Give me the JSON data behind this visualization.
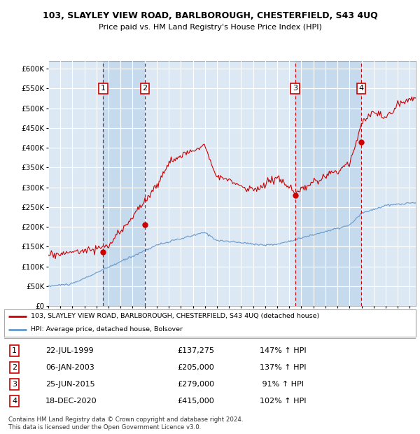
{
  "title": "103, SLAYLEY VIEW ROAD, BARLBOROUGH, CHESTERFIELD, S43 4UQ",
  "subtitle": "Price paid vs. HM Land Registry's House Price Index (HPI)",
  "background_color": "#ffffff",
  "plot_bg_color": "#dce9f5",
  "grid_color": "#ffffff",
  "ylim": [
    0,
    620000
  ],
  "yticks": [
    0,
    50000,
    100000,
    150000,
    200000,
    250000,
    300000,
    350000,
    400000,
    450000,
    500000,
    550000,
    600000
  ],
  "xlim_start": 1995.0,
  "xlim_end": 2025.5,
  "transactions": [
    {
      "num": 1,
      "date_str": "22-JUL-1999",
      "x": 1999.55,
      "price": 137275,
      "pct": "147%",
      "dir": "↑"
    },
    {
      "num": 2,
      "date_str": "06-JAN-2003",
      "x": 2003.02,
      "price": 205000,
      "pct": "137%",
      "dir": "↑"
    },
    {
      "num": 3,
      "date_str": "25-JUN-2015",
      "x": 2015.48,
      "price": 279000,
      "pct": "91%",
      "dir": "↑"
    },
    {
      "num": 4,
      "date_str": "18-DEC-2020",
      "x": 2020.96,
      "price": 415000,
      "pct": "102%",
      "dir": "↑"
    }
  ],
  "legend_line1": "103, SLAYLEY VIEW ROAD, BARLBOROUGH, CHESTERFIELD, S43 4UQ (detached house)",
  "legend_line2": "HPI: Average price, detached house, Bolsover",
  "footer1": "Contains HM Land Registry data © Crown copyright and database right 2024.",
  "footer2": "This data is licensed under the Open Government Licence v3.0.",
  "red_color": "#cc0000",
  "blue_color": "#6699cc",
  "table_rows": [
    {
      "num": "1",
      "date": "22-JUL-1999",
      "price": "£137,275",
      "pct": "147% ↑ HPI"
    },
    {
      "num": "2",
      "date": "06-JAN-2003",
      "price": "£205,000",
      "pct": "137% ↑ HPI"
    },
    {
      "num": "3",
      "date": "25-JUN-2015",
      "price": "£279,000",
      "pct": " 91% ↑ HPI"
    },
    {
      "num": "4",
      "date": "18-DEC-2020",
      "price": "£415,000",
      "pct": "102% ↑ HPI"
    }
  ]
}
